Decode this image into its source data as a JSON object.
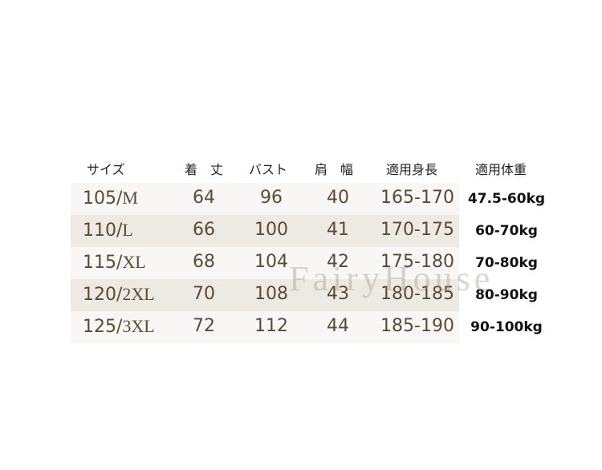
{
  "headers": [
    "サイズ",
    "着　丈",
    "バスト",
    "肩　幅",
    "適用身長",
    "適用体重"
  ],
  "rows": [
    {
      "size_num": "105/",
      "size_letter": "M",
      "length": "64",
      "bust": "96",
      "shoulder": "40",
      "height": "165-170",
      "weight": "47.5-60kg"
    },
    {
      "size_num": "110/",
      "size_letter": "L",
      "length": "66",
      "bust": "100",
      "shoulder": "41",
      "height": "170-175",
      "weight": "60-70kg"
    },
    {
      "size_num": "115/",
      "size_letter": "XL",
      "length": "68",
      "bust": "104",
      "shoulder": "42",
      "height": "175-180",
      "weight": "70-80kg"
    },
    {
      "size_num": "120/",
      "size_letter": "2XL",
      "length": "70",
      "bust": "108",
      "shoulder": "43",
      "height": "180-185",
      "weight": "80-90kg"
    },
    {
      "size_num": "125/",
      "size_letter": "3XL",
      "length": "72",
      "bust": "112",
      "shoulder": "44",
      "height": "185-190",
      "weight": "90-100kg"
    }
  ],
  "watermark": "FairyHouse",
  "colors": {
    "row_light": "#f8f7f5",
    "row_dark": "#edeae4",
    "text": "#5b4a36"
  }
}
